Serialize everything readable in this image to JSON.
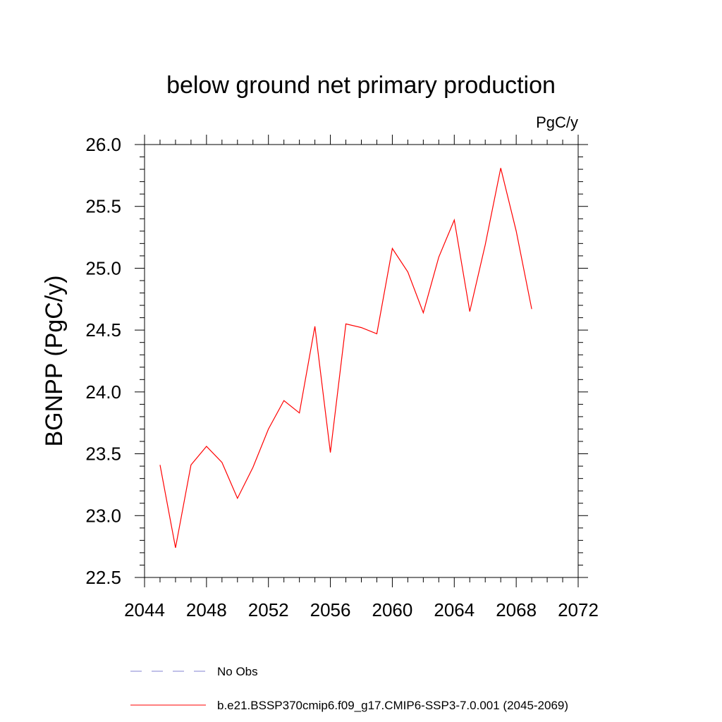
{
  "chart_data": {
    "type": "line",
    "title": "below ground net primary production",
    "units_label": "PgC/y",
    "xlabel": "",
    "ylabel": "BGNPP  (PgC/y)",
    "xlim": [
      2044,
      2072
    ],
    "ylim": [
      22.5,
      26.0
    ],
    "x_ticks": [
      "2044",
      "2048",
      "2052",
      "2056",
      "2060",
      "2064",
      "2068",
      "2072"
    ],
    "y_ticks": [
      "22.5",
      "23.0",
      "23.5",
      "24.0",
      "24.5",
      "25.0",
      "25.5",
      "26.0"
    ],
    "grid": false,
    "legend_position": "bottom",
    "series": [
      {
        "name": "b.e21.BSSP370cmip6.f09_g17.CMIP6-SSP3-7.0.001 (2045-2069)",
        "color": "#ff0000",
        "style": "solid",
        "x": [
          2045,
          2046,
          2047,
          2048,
          2049,
          2050,
          2051,
          2052,
          2053,
          2054,
          2055,
          2056,
          2057,
          2058,
          2059,
          2060,
          2061,
          2062,
          2063,
          2064,
          2065,
          2066,
          2067,
          2068,
          2069
        ],
        "values": [
          23.41,
          22.74,
          23.41,
          23.56,
          23.43,
          23.14,
          23.39,
          23.7,
          23.93,
          23.83,
          24.53,
          23.51,
          24.55,
          24.52,
          24.47,
          25.16,
          24.97,
          24.64,
          25.09,
          25.39,
          24.65,
          25.19,
          25.81,
          25.3,
          24.67
        ]
      }
    ],
    "legend": [
      {
        "name": "No Obs",
        "color": "#8080d0",
        "style": "dashed"
      },
      {
        "name": "b.e21.BSSP370cmip6.f09_g17.CMIP6-SSP3-7.0.001 (2045-2069)",
        "color": "#ff0000",
        "style": "solid"
      }
    ]
  }
}
